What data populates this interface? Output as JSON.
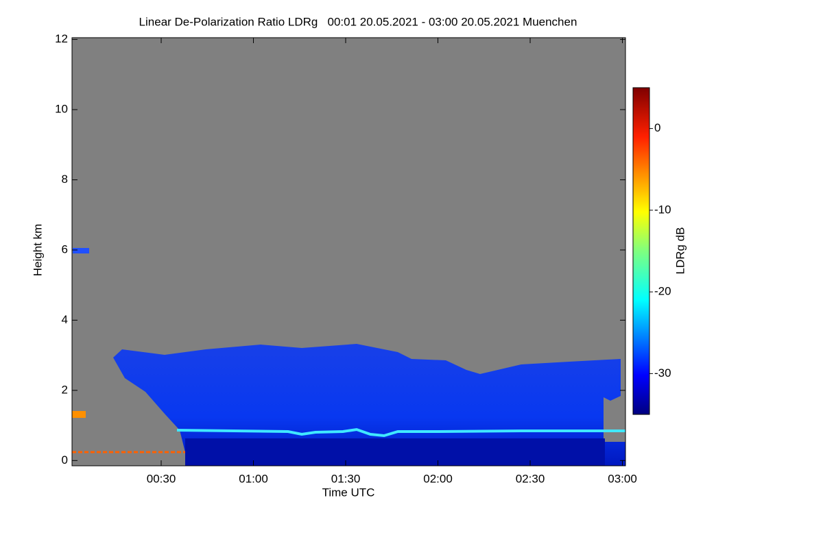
{
  "chart_data": {
    "type": "heatmap",
    "title": "Linear De-Polarization Ratio LDRg   00:01 20.05.2021 - 03:00 20.05.2021 Muenchen",
    "x_label": "Time UTC",
    "y_label": "Height km",
    "xlim": [
      1,
      181
    ],
    "xticks": [
      {
        "value": 30,
        "label": "00:30"
      },
      {
        "value": 60,
        "label": "01:00"
      },
      {
        "value": 90,
        "label": "01:30"
      },
      {
        "value": 120,
        "label": "02:00"
      },
      {
        "value": 150,
        "label": "02:30"
      },
      {
        "value": 180,
        "label": "03:00"
      }
    ],
    "ylim": [
      -0.15,
      12.05
    ],
    "yticks": [
      0,
      2,
      4,
      6,
      8,
      10,
      12
    ],
    "colorbar": {
      "label": "LDRg dB",
      "lim": [
        -35,
        5
      ],
      "ticks": [
        0,
        -10,
        -20,
        -30
      ]
    }
  }
}
